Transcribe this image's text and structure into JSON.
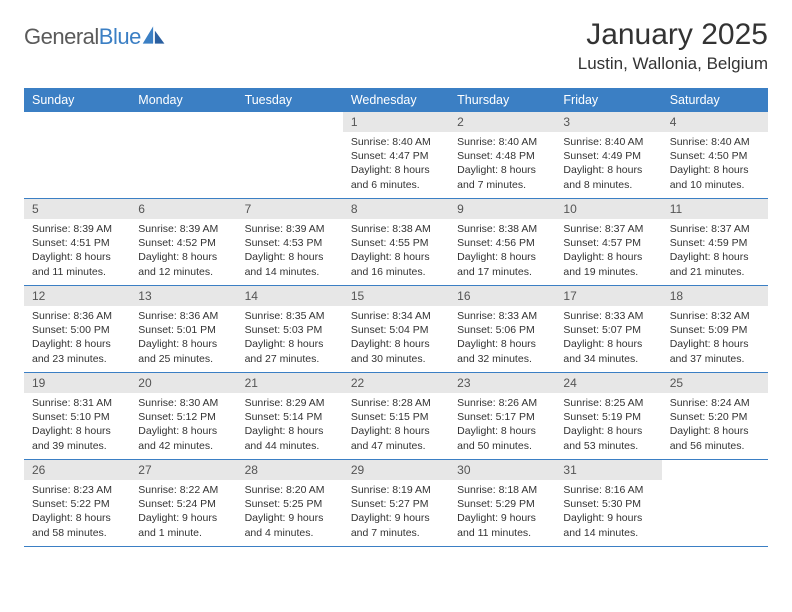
{
  "brand": {
    "part1": "General",
    "part2": "Blue"
  },
  "title": "January 2025",
  "location": "Lustin, Wallonia, Belgium",
  "colors": {
    "header_bg": "#3b7fc4",
    "daynum_bg": "#e7e7e7",
    "text": "#333333",
    "logo_gray": "#5a5a5a",
    "logo_blue": "#3b7fc4",
    "page_bg": "#ffffff"
  },
  "dow": [
    "Sunday",
    "Monday",
    "Tuesday",
    "Wednesday",
    "Thursday",
    "Friday",
    "Saturday"
  ],
  "weeks": [
    [
      {
        "day": "",
        "sunrise": "",
        "sunset": "",
        "daylight": ""
      },
      {
        "day": "",
        "sunrise": "",
        "sunset": "",
        "daylight": ""
      },
      {
        "day": "",
        "sunrise": "",
        "sunset": "",
        "daylight": ""
      },
      {
        "day": "1",
        "sunrise": "Sunrise: 8:40 AM",
        "sunset": "Sunset: 4:47 PM",
        "daylight": "Daylight: 8 hours and 6 minutes."
      },
      {
        "day": "2",
        "sunrise": "Sunrise: 8:40 AM",
        "sunset": "Sunset: 4:48 PM",
        "daylight": "Daylight: 8 hours and 7 minutes."
      },
      {
        "day": "3",
        "sunrise": "Sunrise: 8:40 AM",
        "sunset": "Sunset: 4:49 PM",
        "daylight": "Daylight: 8 hours and 8 minutes."
      },
      {
        "day": "4",
        "sunrise": "Sunrise: 8:40 AM",
        "sunset": "Sunset: 4:50 PM",
        "daylight": "Daylight: 8 hours and 10 minutes."
      }
    ],
    [
      {
        "day": "5",
        "sunrise": "Sunrise: 8:39 AM",
        "sunset": "Sunset: 4:51 PM",
        "daylight": "Daylight: 8 hours and 11 minutes."
      },
      {
        "day": "6",
        "sunrise": "Sunrise: 8:39 AM",
        "sunset": "Sunset: 4:52 PM",
        "daylight": "Daylight: 8 hours and 12 minutes."
      },
      {
        "day": "7",
        "sunrise": "Sunrise: 8:39 AM",
        "sunset": "Sunset: 4:53 PM",
        "daylight": "Daylight: 8 hours and 14 minutes."
      },
      {
        "day": "8",
        "sunrise": "Sunrise: 8:38 AM",
        "sunset": "Sunset: 4:55 PM",
        "daylight": "Daylight: 8 hours and 16 minutes."
      },
      {
        "day": "9",
        "sunrise": "Sunrise: 8:38 AM",
        "sunset": "Sunset: 4:56 PM",
        "daylight": "Daylight: 8 hours and 17 minutes."
      },
      {
        "day": "10",
        "sunrise": "Sunrise: 8:37 AM",
        "sunset": "Sunset: 4:57 PM",
        "daylight": "Daylight: 8 hours and 19 minutes."
      },
      {
        "day": "11",
        "sunrise": "Sunrise: 8:37 AM",
        "sunset": "Sunset: 4:59 PM",
        "daylight": "Daylight: 8 hours and 21 minutes."
      }
    ],
    [
      {
        "day": "12",
        "sunrise": "Sunrise: 8:36 AM",
        "sunset": "Sunset: 5:00 PM",
        "daylight": "Daylight: 8 hours and 23 minutes."
      },
      {
        "day": "13",
        "sunrise": "Sunrise: 8:36 AM",
        "sunset": "Sunset: 5:01 PM",
        "daylight": "Daylight: 8 hours and 25 minutes."
      },
      {
        "day": "14",
        "sunrise": "Sunrise: 8:35 AM",
        "sunset": "Sunset: 5:03 PM",
        "daylight": "Daylight: 8 hours and 27 minutes."
      },
      {
        "day": "15",
        "sunrise": "Sunrise: 8:34 AM",
        "sunset": "Sunset: 5:04 PM",
        "daylight": "Daylight: 8 hours and 30 minutes."
      },
      {
        "day": "16",
        "sunrise": "Sunrise: 8:33 AM",
        "sunset": "Sunset: 5:06 PM",
        "daylight": "Daylight: 8 hours and 32 minutes."
      },
      {
        "day": "17",
        "sunrise": "Sunrise: 8:33 AM",
        "sunset": "Sunset: 5:07 PM",
        "daylight": "Daylight: 8 hours and 34 minutes."
      },
      {
        "day": "18",
        "sunrise": "Sunrise: 8:32 AM",
        "sunset": "Sunset: 5:09 PM",
        "daylight": "Daylight: 8 hours and 37 minutes."
      }
    ],
    [
      {
        "day": "19",
        "sunrise": "Sunrise: 8:31 AM",
        "sunset": "Sunset: 5:10 PM",
        "daylight": "Daylight: 8 hours and 39 minutes."
      },
      {
        "day": "20",
        "sunrise": "Sunrise: 8:30 AM",
        "sunset": "Sunset: 5:12 PM",
        "daylight": "Daylight: 8 hours and 42 minutes."
      },
      {
        "day": "21",
        "sunrise": "Sunrise: 8:29 AM",
        "sunset": "Sunset: 5:14 PM",
        "daylight": "Daylight: 8 hours and 44 minutes."
      },
      {
        "day": "22",
        "sunrise": "Sunrise: 8:28 AM",
        "sunset": "Sunset: 5:15 PM",
        "daylight": "Daylight: 8 hours and 47 minutes."
      },
      {
        "day": "23",
        "sunrise": "Sunrise: 8:26 AM",
        "sunset": "Sunset: 5:17 PM",
        "daylight": "Daylight: 8 hours and 50 minutes."
      },
      {
        "day": "24",
        "sunrise": "Sunrise: 8:25 AM",
        "sunset": "Sunset: 5:19 PM",
        "daylight": "Daylight: 8 hours and 53 minutes."
      },
      {
        "day": "25",
        "sunrise": "Sunrise: 8:24 AM",
        "sunset": "Sunset: 5:20 PM",
        "daylight": "Daylight: 8 hours and 56 minutes."
      }
    ],
    [
      {
        "day": "26",
        "sunrise": "Sunrise: 8:23 AM",
        "sunset": "Sunset: 5:22 PM",
        "daylight": "Daylight: 8 hours and 58 minutes."
      },
      {
        "day": "27",
        "sunrise": "Sunrise: 8:22 AM",
        "sunset": "Sunset: 5:24 PM",
        "daylight": "Daylight: 9 hours and 1 minute."
      },
      {
        "day": "28",
        "sunrise": "Sunrise: 8:20 AM",
        "sunset": "Sunset: 5:25 PM",
        "daylight": "Daylight: 9 hours and 4 minutes."
      },
      {
        "day": "29",
        "sunrise": "Sunrise: 8:19 AM",
        "sunset": "Sunset: 5:27 PM",
        "daylight": "Daylight: 9 hours and 7 minutes."
      },
      {
        "day": "30",
        "sunrise": "Sunrise: 8:18 AM",
        "sunset": "Sunset: 5:29 PM",
        "daylight": "Daylight: 9 hours and 11 minutes."
      },
      {
        "day": "31",
        "sunrise": "Sunrise: 8:16 AM",
        "sunset": "Sunset: 5:30 PM",
        "daylight": "Daylight: 9 hours and 14 minutes."
      },
      {
        "day": "",
        "sunrise": "",
        "sunset": "",
        "daylight": ""
      }
    ]
  ]
}
